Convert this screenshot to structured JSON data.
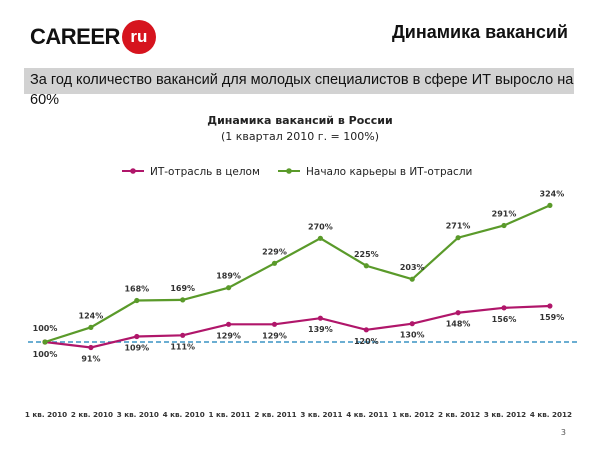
{
  "header": {
    "logo_text": "CAREER",
    "logo_badge": "ru",
    "title": "Динамика вакансий"
  },
  "banner": {
    "text": "За год количество вакансий для молодых специалистов в сфере ИТ выросло на 60%"
  },
  "page_number": "3",
  "chart_data": {
    "type": "line",
    "title": "Динамика вакансий в России",
    "subtitle": "(1 квартал 2010 г. = 100%)",
    "categories": [
      "1 кв. 2010",
      "2 кв. 2010",
      "3 кв. 2010",
      "4 кв. 2010",
      "1 кв. 2011",
      "2 кв. 2011",
      "3 кв. 2011",
      "4 кв. 2011",
      "1 кв. 2012",
      "2 кв. 2012",
      "3 кв. 2012",
      "4 кв. 2012"
    ],
    "series": [
      {
        "name": "ИТ-отрасль в целом",
        "color": "#b0166a",
        "values": [
          100,
          91,
          109,
          111,
          129,
          129,
          139,
          120,
          130,
          148,
          156,
          159
        ]
      },
      {
        "name": "Начало карьеры в ИТ-отрасли",
        "color": "#5a9a2a",
        "values": [
          100,
          124,
          168,
          169,
          189,
          229,
          270,
          225,
          203,
          271,
          291,
          324
        ]
      }
    ],
    "reference_line": {
      "value": 100,
      "color": "#3a93c4",
      "style": "dashed"
    },
    "legend_position": "top",
    "grid": false
  }
}
